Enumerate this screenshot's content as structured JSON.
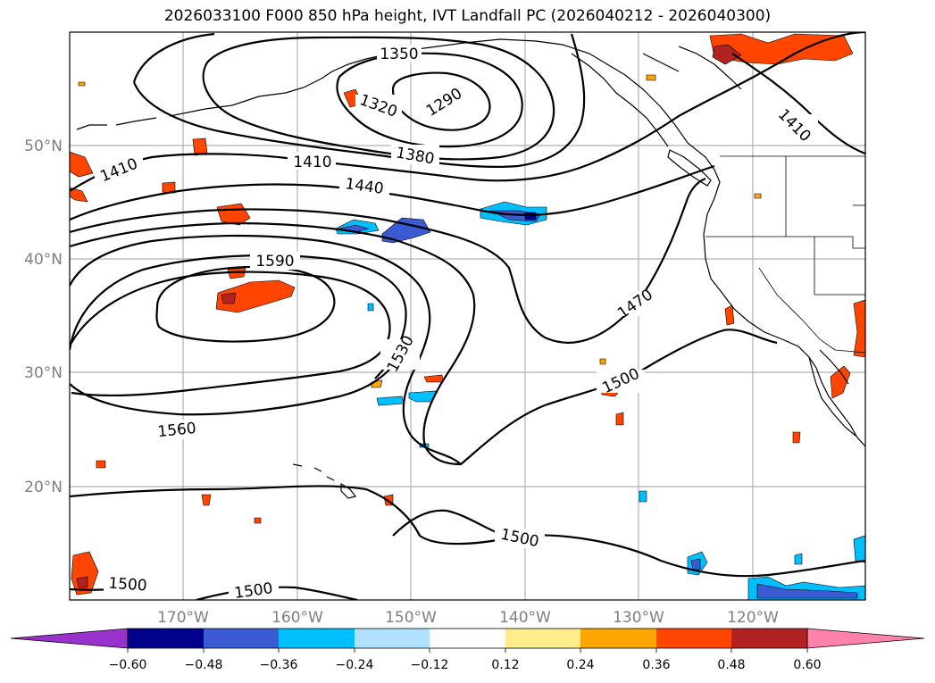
{
  "title": "2026033100 F000 850 hPa height, IVT Landfall PC (2026040212 - 2026040300)",
  "lat_labels": [
    "50°N",
    "40°N",
    "30°N",
    "20°N"
  ],
  "lon_labels": [
    "170°W",
    "160°W",
    "150°W",
    "140°W",
    "130°W",
    "120°W"
  ],
  "contour_labels": [
    "1350",
    "1290",
    "1320",
    "1380",
    "1410",
    "1410",
    "1440",
    "1410",
    "1590",
    "1530",
    "1470",
    "1500",
    "1560",
    "1500",
    "1500",
    "1500"
  ],
  "colorbar": {
    "ticks": [
      "−0.60",
      "−0.48",
      "−0.36",
      "−0.24",
      "−0.12",
      "0.12",
      "0.24",
      "0.36",
      "0.48",
      "0.60"
    ],
    "colors": [
      "#9932cc",
      "#00008b",
      "#3a5bd1",
      "#00bfff",
      "#b0e2ff",
      "#ffffff",
      "#ffec8b",
      "#ffa500",
      "#ff4500",
      "#b22222",
      "#ff82ab"
    ]
  }
}
